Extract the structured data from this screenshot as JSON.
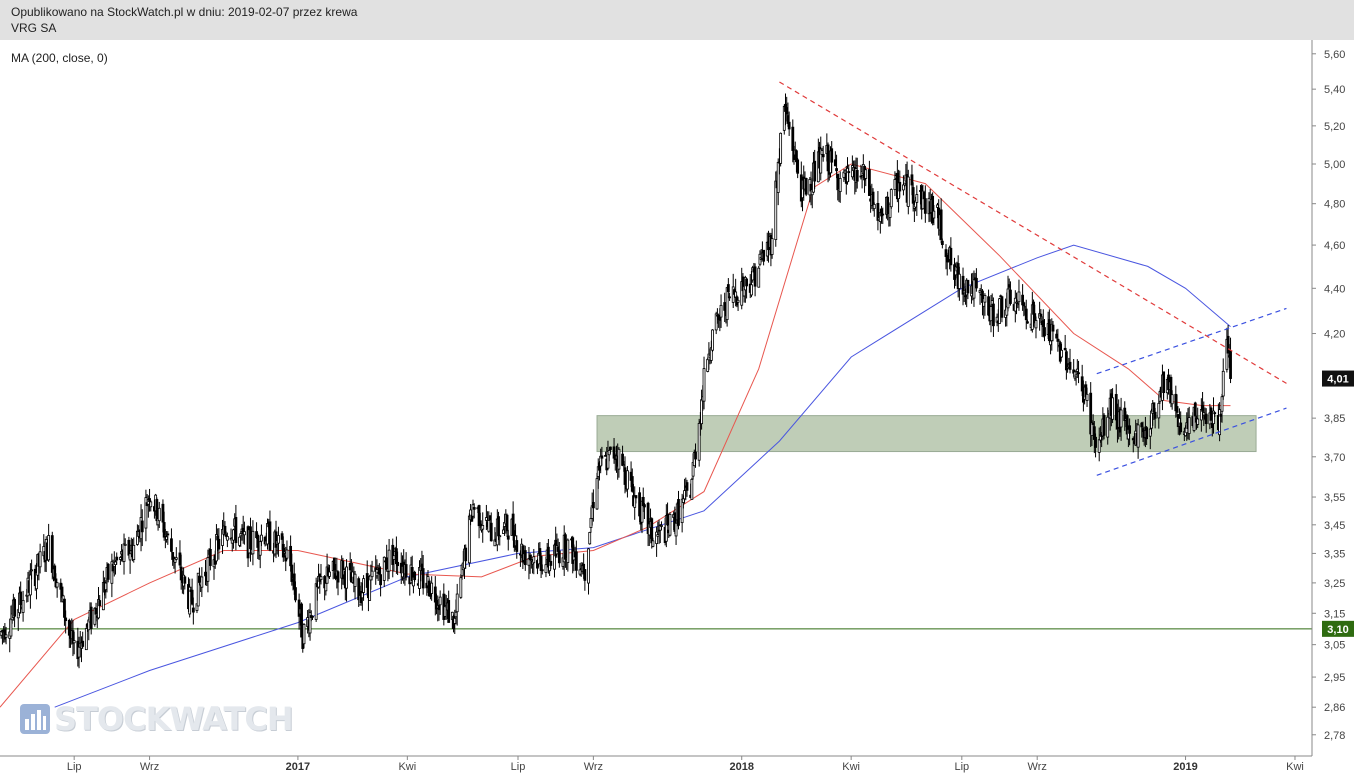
{
  "header": {
    "published": "Opublikowano na StockWatch.pl w dniu: 2019-02-07 przez krewa",
    "instrument": "VRG SA"
  },
  "indicator_label": "MA (200, close, 0)",
  "watermark": "STOCKWATCH",
  "colors": {
    "candle": "#000000",
    "ma_short": "#e8574f",
    "ma_200": "#4a56e0",
    "support_line": "#2e6b10",
    "zone_fill": "#b9c8b0",
    "trend_down": "#e03a3a",
    "channel": "#3a50e0",
    "badge_bg": "#111111",
    "header_bg": "#e1e1e1"
  },
  "chart_data": {
    "type": "candlestick",
    "y_axis": {
      "ticks": [
        "5,60",
        "5,40",
        "5,20",
        "5,00",
        "4,80",
        "4,60",
        "4,40",
        "4,20",
        "3,85",
        "3,70",
        "3,55",
        "3,45",
        "3,35",
        "3,25",
        "3,15",
        "3,05",
        "2,95",
        "2,86",
        "2,78"
      ],
      "tick_values": [
        5.6,
        5.4,
        5.2,
        5.0,
        4.8,
        4.6,
        4.4,
        4.2,
        3.85,
        3.7,
        3.55,
        3.45,
        3.35,
        3.25,
        3.15,
        3.05,
        2.95,
        2.86,
        2.78
      ],
      "scale": "log",
      "range": [
        2.72,
        5.68
      ]
    },
    "x_axis": {
      "labels": [
        {
          "text": "Lip",
          "date": "2016-07-01",
          "bold": false
        },
        {
          "text": "Wrz",
          "date": "2016-09-01",
          "bold": false
        },
        {
          "text": "2017",
          "date": "2017-01-01",
          "bold": true
        },
        {
          "text": "Kwi",
          "date": "2017-04-01",
          "bold": false
        },
        {
          "text": "Lip",
          "date": "2017-07-01",
          "bold": false
        },
        {
          "text": "Wrz",
          "date": "2017-09-01",
          "bold": false
        },
        {
          "text": "2018",
          "date": "2018-01-01",
          "bold": true
        },
        {
          "text": "Kwi",
          "date": "2018-04-01",
          "bold": false
        },
        {
          "text": "Lip",
          "date": "2018-07-01",
          "bold": false
        },
        {
          "text": "Wrz",
          "date": "2018-09-01",
          "bold": false
        },
        {
          "text": "2019",
          "date": "2019-01-01",
          "bold": true
        },
        {
          "text": "Kwi",
          "date": "2019-04-01",
          "bold": false
        }
      ],
      "range": [
        "2016-05-01",
        "2019-04-15"
      ]
    },
    "last_price": {
      "label": "4,01",
      "value": 4.01
    },
    "support_level": {
      "label": "3,10",
      "value": 3.1
    },
    "zone": {
      "from_date": "2017-09-04",
      "to_date": "2019-02-28",
      "low": 3.72,
      "high": 3.86
    },
    "trendlines": [
      {
        "name": "downtrend",
        "style": "dashed",
        "color_key": "trend_down",
        "points": [
          [
            "2018-02-01",
            5.44
          ],
          [
            "2019-03-25",
            3.99
          ]
        ]
      },
      {
        "name": "channel-upper",
        "style": "dashed",
        "color_key": "channel",
        "points": [
          [
            "2018-10-20",
            4.03
          ],
          [
            "2019-03-25",
            4.31
          ]
        ]
      },
      {
        "name": "channel-lower",
        "style": "dashed",
        "color_key": "channel",
        "points": [
          [
            "2018-10-20",
            3.63
          ],
          [
            "2019-03-25",
            3.89
          ]
        ]
      }
    ],
    "price_path": [
      [
        "2016-05-01",
        3.08
      ],
      [
        "2016-05-20",
        3.2
      ],
      [
        "2016-06-10",
        3.38
      ],
      [
        "2016-06-25",
        3.12
      ],
      [
        "2016-07-01",
        3.02
      ],
      [
        "2016-07-15",
        3.13
      ],
      [
        "2016-08-01",
        3.3
      ],
      [
        "2016-08-20",
        3.38
      ],
      [
        "2016-09-01",
        3.57
      ],
      [
        "2016-09-20",
        3.35
      ],
      [
        "2016-10-05",
        3.18
      ],
      [
        "2016-10-20",
        3.32
      ],
      [
        "2016-11-05",
        3.45
      ],
      [
        "2016-11-20",
        3.38
      ],
      [
        "2016-12-05",
        3.42
      ],
      [
        "2016-12-25",
        3.33
      ],
      [
        "2017-01-05",
        3.08
      ],
      [
        "2017-01-20",
        3.25
      ],
      [
        "2017-02-05",
        3.3
      ],
      [
        "2017-02-20",
        3.22
      ],
      [
        "2017-03-05",
        3.26
      ],
      [
        "2017-03-20",
        3.35
      ],
      [
        "2017-04-01",
        3.3
      ],
      [
        "2017-04-20",
        3.24
      ],
      [
        "2017-05-10",
        3.12
      ],
      [
        "2017-05-25",
        3.52
      ],
      [
        "2017-06-10",
        3.42
      ],
      [
        "2017-06-25",
        3.45
      ],
      [
        "2017-07-05",
        3.35
      ],
      [
        "2017-07-25",
        3.32
      ],
      [
        "2017-08-10",
        3.38
      ],
      [
        "2017-08-25",
        3.3
      ],
      [
        "2017-09-04",
        3.65
      ],
      [
        "2017-09-20",
        3.72
      ],
      [
        "2017-10-05",
        3.55
      ],
      [
        "2017-10-20",
        3.4
      ],
      [
        "2017-11-05",
        3.45
      ],
      [
        "2017-11-20",
        3.58
      ],
      [
        "2017-12-05",
        4.15
      ],
      [
        "2017-12-20",
        4.35
      ],
      [
        "2018-01-10",
        4.45
      ],
      [
        "2018-01-25",
        4.62
      ],
      [
        "2018-02-05",
        5.3
      ],
      [
        "2018-02-20",
        4.85
      ],
      [
        "2018-03-10",
        5.05
      ],
      [
        "2018-03-25",
        4.9
      ],
      [
        "2018-04-10",
        4.95
      ],
      [
        "2018-04-25",
        4.7
      ],
      [
        "2018-05-10",
        4.9
      ],
      [
        "2018-05-25",
        4.85
      ],
      [
        "2018-06-10",
        4.75
      ],
      [
        "2018-06-25",
        4.45
      ],
      [
        "2018-07-10",
        4.4
      ],
      [
        "2018-07-25",
        4.28
      ],
      [
        "2018-08-10",
        4.35
      ],
      [
        "2018-08-25",
        4.3
      ],
      [
        "2018-09-10",
        4.2
      ],
      [
        "2018-09-25",
        4.1
      ],
      [
        "2018-10-10",
        3.95
      ],
      [
        "2018-10-20",
        3.72
      ],
      [
        "2018-11-01",
        3.9
      ],
      [
        "2018-11-15",
        3.78
      ],
      [
        "2018-12-01",
        3.8
      ],
      [
        "2018-12-15",
        4.02
      ],
      [
        "2019-01-01",
        3.78
      ],
      [
        "2019-01-15",
        3.9
      ],
      [
        "2019-01-28",
        3.82
      ],
      [
        "2019-02-04",
        4.14
      ],
      [
        "2019-02-07",
        4.01
      ]
    ],
    "series": [
      {
        "name": "MA (200, close, 0)",
        "color_key": "ma_200",
        "points": [
          [
            "2016-06-15",
            2.86
          ],
          [
            "2016-09-01",
            2.97
          ],
          [
            "2017-01-01",
            3.12
          ],
          [
            "2017-04-01",
            3.27
          ],
          [
            "2017-07-01",
            3.35
          ],
          [
            "2017-09-01",
            3.37
          ],
          [
            "2017-12-01",
            3.5
          ],
          [
            "2018-02-01",
            3.76
          ],
          [
            "2018-04-01",
            4.1
          ],
          [
            "2018-07-01",
            4.4
          ],
          [
            "2018-09-01",
            4.54
          ],
          [
            "2018-10-01",
            4.6
          ],
          [
            "2018-12-01",
            4.5
          ],
          [
            "2019-01-01",
            4.4
          ],
          [
            "2019-02-07",
            4.23
          ]
        ]
      },
      {
        "color_key": "ma_short",
        "points": [
          [
            "2016-05-01",
            2.86
          ],
          [
            "2016-07-01",
            3.13
          ],
          [
            "2016-09-01",
            3.25
          ],
          [
            "2016-11-01",
            3.36
          ],
          [
            "2017-01-01",
            3.36
          ],
          [
            "2017-04-01",
            3.28
          ],
          [
            "2017-06-01",
            3.27
          ],
          [
            "2017-07-15",
            3.34
          ],
          [
            "2017-09-01",
            3.36
          ],
          [
            "2017-10-15",
            3.44
          ],
          [
            "2017-12-01",
            3.57
          ],
          [
            "2018-01-15",
            4.05
          ],
          [
            "2018-03-01",
            4.88
          ],
          [
            "2018-04-01",
            5.0
          ],
          [
            "2018-06-01",
            4.9
          ],
          [
            "2018-08-01",
            4.55
          ],
          [
            "2018-10-01",
            4.2
          ],
          [
            "2018-11-15",
            4.05
          ],
          [
            "2018-12-15",
            3.92
          ],
          [
            "2019-01-15",
            3.9
          ],
          [
            "2019-02-07",
            3.9
          ]
        ]
      }
    ]
  }
}
